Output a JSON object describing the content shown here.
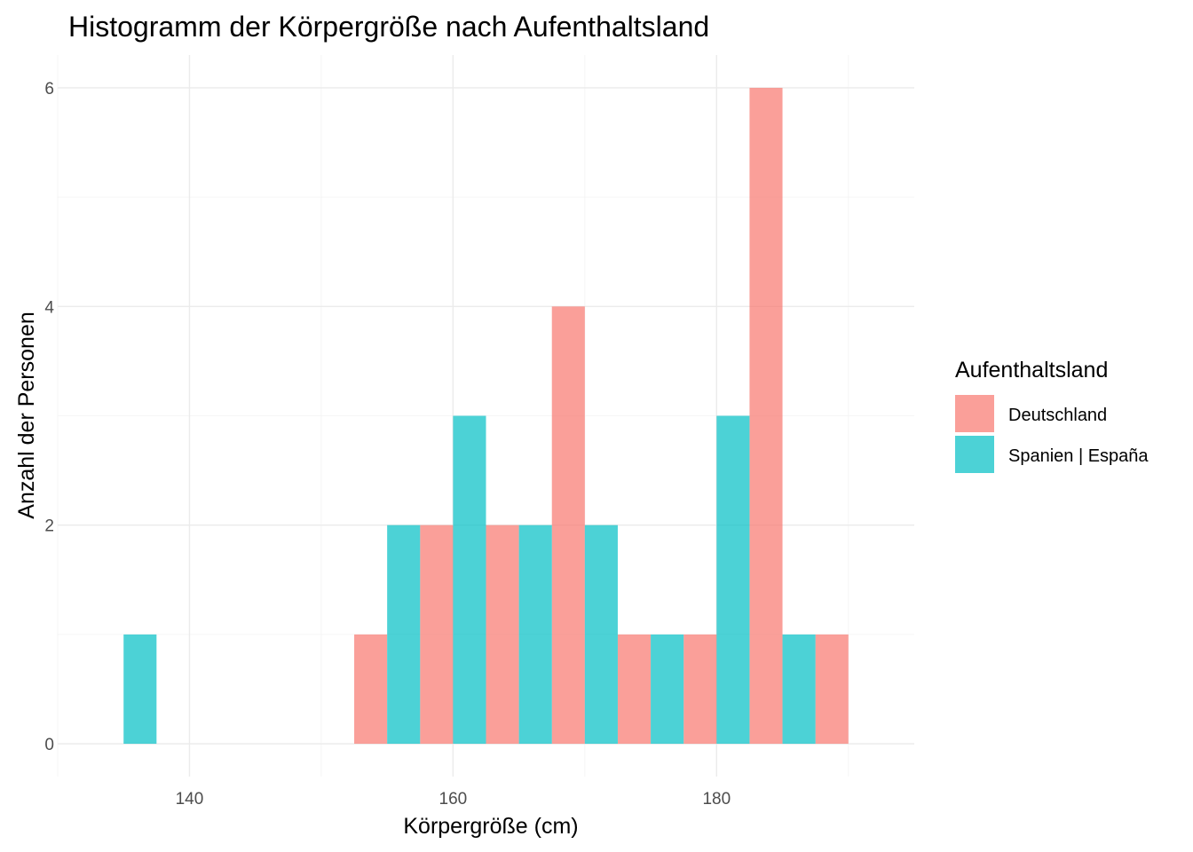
{
  "chart_data": {
    "type": "bar",
    "subtype": "histogram",
    "title": "Histogramm der Körpergröße nach Aufenthaltsland",
    "xlabel": "Körpergröße (cm)",
    "ylabel": "Anzahl der Personen",
    "xlim": [
      130,
      195
    ],
    "ylim": [
      -0.3,
      6.3
    ],
    "xticks": [
      140,
      160,
      180
    ],
    "yticks": [
      0,
      2,
      4,
      6
    ],
    "grid": true,
    "bin_width": 2.5,
    "legend": {
      "title": "Aufenthaltsland",
      "placement": "right"
    },
    "series": [
      {
        "name": "Deutschland",
        "color": "#F8766D",
        "bins": [
          {
            "x0": 152.5,
            "x1": 155.0,
            "count": 1
          },
          {
            "x0": 157.5,
            "x1": 160.0,
            "count": 2
          },
          {
            "x0": 162.5,
            "x1": 165.0,
            "count": 2
          },
          {
            "x0": 167.5,
            "x1": 170.0,
            "count": 4
          },
          {
            "x0": 172.5,
            "x1": 175.0,
            "count": 1
          },
          {
            "x0": 177.5,
            "x1": 180.0,
            "count": 1
          },
          {
            "x0": 182.5,
            "x1": 185.0,
            "count": 6
          },
          {
            "x0": 187.5,
            "x1": 190.0,
            "count": 1
          }
        ]
      },
      {
        "name": "Spanien | España",
        "color": "#00BFC4",
        "bins": [
          {
            "x0": 135.0,
            "x1": 137.5,
            "count": 1
          },
          {
            "x0": 155.0,
            "x1": 157.5,
            "count": 2
          },
          {
            "x0": 160.0,
            "x1": 162.5,
            "count": 3
          },
          {
            "x0": 165.0,
            "x1": 167.5,
            "count": 2
          },
          {
            "x0": 170.0,
            "x1": 172.5,
            "count": 2
          },
          {
            "x0": 175.0,
            "x1": 177.5,
            "count": 1
          },
          {
            "x0": 180.0,
            "x1": 182.5,
            "count": 3
          },
          {
            "x0": 185.0,
            "x1": 187.5,
            "count": 1
          }
        ]
      }
    ]
  }
}
